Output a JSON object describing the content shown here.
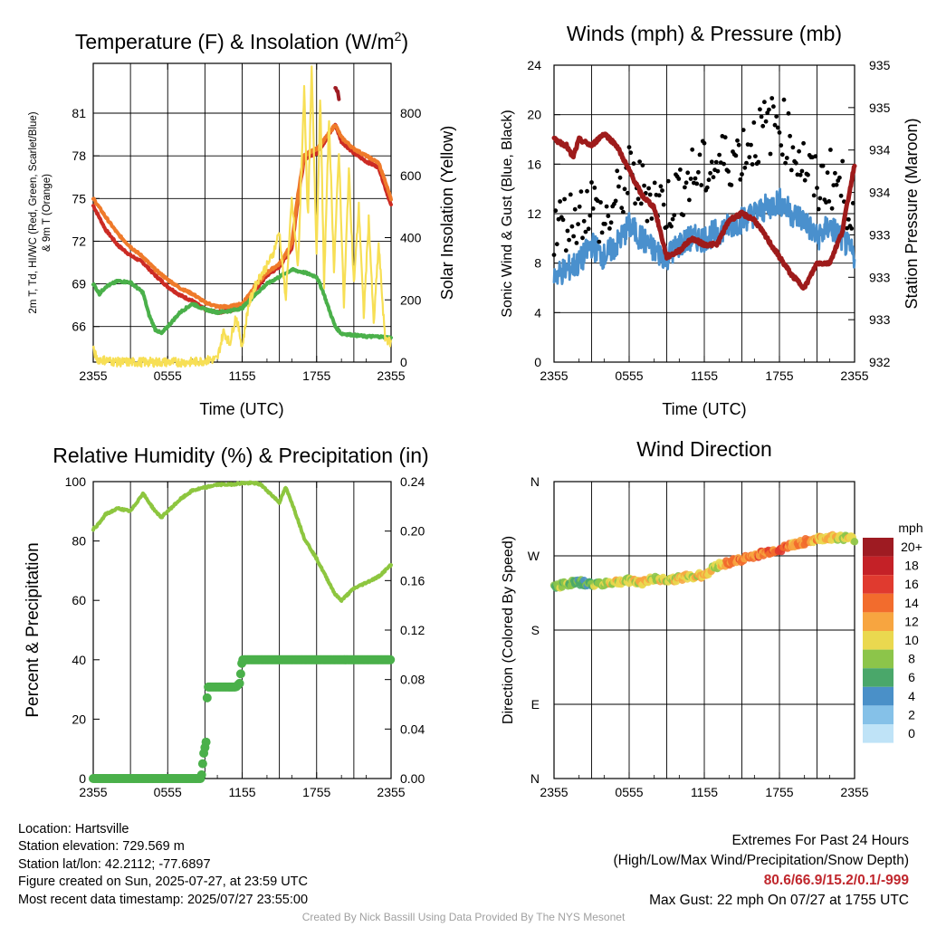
{
  "chart_data": [
    {
      "type": "line",
      "title": "Temperature (F) & Insolation (W/m²)",
      "title_main": "Temperature (F) & Insolation (W/m",
      "title_sup": "2",
      "title_end": ")",
      "xlabel": "Time (UTC)",
      "ylabel_line1": "2m T, Td, HI/WC (Red, Green, Scarlet/Blue)",
      "ylabel_line2": "& 9m T (Orange)",
      "y2label": "Solar Insolation (Yellow)",
      "x_ticks": [
        "2355",
        "0555",
        "1155",
        "1755",
        "2355"
      ],
      "y_ticks": [
        66,
        69,
        72,
        75,
        78,
        81
      ],
      "ylim": [
        63.5,
        84.5
      ],
      "y2_ticks": [
        0,
        200,
        400,
        600,
        800
      ],
      "y2lim": [
        0,
        960
      ],
      "grid": true,
      "series": [
        {
          "name": "2m T",
          "color": "#cc2b24",
          "x": [
            0,
            1,
            2,
            3,
            4,
            5,
            6,
            7,
            8,
            9,
            10,
            11,
            12,
            13,
            14,
            15,
            16,
            16.5,
            17,
            17.5,
            18,
            18.5,
            19,
            19.5,
            20,
            21,
            22,
            23,
            24
          ],
          "y": [
            74.5,
            72.8,
            71.7,
            71.0,
            70.5,
            69.6,
            68.8,
            68.2,
            67.8,
            67.2,
            67.0,
            67.1,
            67.4,
            68.5,
            69.6,
            70.2,
            71.5,
            75.0,
            77.8,
            78.0,
            78.2,
            78.8,
            79.5,
            80.2,
            79.0,
            78.2,
            77.6,
            77.2,
            74.5
          ]
        },
        {
          "name": "9m T",
          "color": "#ef7a2a",
          "x": [
            0,
            1,
            2,
            3,
            4,
            5,
            6,
            7,
            8,
            9,
            10,
            11,
            12,
            13,
            14,
            15,
            16,
            16.5,
            17,
            17.5,
            18,
            18.5,
            19,
            19.5,
            20,
            21,
            22,
            23,
            24
          ],
          "y": [
            75.0,
            73.7,
            72.5,
            71.6,
            70.9,
            70.0,
            69.3,
            68.7,
            68.3,
            67.7,
            67.4,
            67.4,
            67.6,
            68.8,
            69.8,
            70.4,
            71.8,
            75.3,
            78.0,
            78.3,
            78.5,
            79.0,
            79.6,
            80.2,
            79.3,
            78.5,
            78.0,
            77.5,
            75.0
          ]
        },
        {
          "name": "Td",
          "color": "#4ab04a",
          "x": [
            0,
            0.5,
            1,
            2,
            3,
            4,
            4.5,
            5,
            5.5,
            6,
            7,
            8,
            9,
            10,
            11,
            12,
            13,
            14,
            15,
            16,
            17,
            18,
            18.5,
            19,
            19.5,
            20,
            21,
            22,
            23,
            24
          ],
          "y": [
            69.0,
            68.3,
            68.8,
            69.2,
            69.1,
            68.4,
            66.8,
            65.8,
            65.5,
            66.0,
            67.0,
            67.6,
            67.2,
            67.0,
            67.1,
            67.3,
            68.2,
            69.0,
            69.5,
            70.0,
            69.8,
            69.5,
            68.5,
            67.2,
            66.0,
            65.5,
            65.4,
            65.3,
            65.3,
            65.2
          ]
        },
        {
          "name": "HI/WC",
          "color": "#9e1b22",
          "x": [
            19.5,
            19.7,
            19.8
          ],
          "y": [
            82.8,
            82.5,
            82.0
          ]
        },
        {
          "name": "Insolation",
          "color": "#f7df55",
          "axis": "y2",
          "x": [
            0,
            0.3,
            2,
            4,
            6,
            8,
            10,
            10.5,
            11,
            11.5,
            12,
            12.5,
            13,
            13.5,
            14,
            14.5,
            15,
            15.5,
            16,
            16.5,
            17,
            17.3,
            17.6,
            18,
            18.3,
            18.6,
            19,
            19.4,
            19.8,
            20.2,
            20.6,
            21,
            21.4,
            21.8,
            22.2,
            22.6,
            23,
            23.5,
            24
          ],
          "y": [
            40,
            10,
            0,
            0,
            0,
            0,
            10,
            100,
            60,
            150,
            50,
            180,
            240,
            280,
            310,
            350,
            420,
            200,
            520,
            300,
            880,
            450,
            940,
            350,
            860,
            250,
            780,
            300,
            680,
            180,
            620,
            250,
            500,
            150,
            460,
            120,
            380,
            80,
            60
          ]
        }
      ]
    },
    {
      "type": "line",
      "title": "Winds (mph) & Pressure (mb)",
      "xlabel": "Time (UTC)",
      "ylabel": "Sonic Wind & Gust (Blue, Black)",
      "y2label": "Station Pressure (Maroon)",
      "x_ticks": [
        "2355",
        "0555",
        "1155",
        "1755",
        "2355"
      ],
      "y_ticks": [
        0,
        4,
        8,
        12,
        16,
        20,
        24
      ],
      "ylim": [
        0,
        24
      ],
      "y2_ticks": [
        "932",
        "933",
        "933",
        "933",
        "934",
        "934",
        "935",
        "935"
      ],
      "grid": true,
      "series": [
        {
          "name": "Sonic Wind",
          "color": "#4a90cd",
          "x": [
            0,
            1,
            2,
            3,
            4,
            5,
            6,
            7,
            8,
            9,
            10,
            11,
            12,
            13,
            14,
            15,
            16,
            17,
            18,
            19,
            20,
            21,
            22,
            23,
            24
          ],
          "y": [
            7,
            7.5,
            8,
            9.5,
            8.5,
            9.5,
            11,
            10,
            9,
            8.5,
            9.5,
            10,
            10,
            10.5,
            11,
            11.5,
            12,
            12.5,
            13,
            12,
            11.5,
            10,
            11,
            10,
            8.5
          ]
        },
        {
          "name": "Gust",
          "color": "#000000",
          "x": [
            0,
            1,
            2,
            3,
            4,
            5,
            6,
            7,
            8,
            9,
            10,
            11,
            12,
            13,
            14,
            15,
            16,
            17,
            18,
            19,
            20,
            21,
            22,
            23,
            24
          ],
          "y": [
            11,
            11.5,
            12,
            13,
            11,
            13,
            15,
            14,
            13.5,
            12.5,
            14,
            15,
            15.5,
            16,
            16.5,
            17,
            18,
            19,
            19.5,
            17.5,
            16,
            14,
            15,
            14,
            12
          ]
        },
        {
          "name": "Station Pressure",
          "color": "#9e1b1b",
          "x": [
            0,
            1,
            1.5,
            2,
            3,
            4,
            5,
            6,
            7,
            8,
            9,
            10,
            11,
            12,
            13,
            14,
            15,
            16,
            17,
            18,
            19,
            20,
            21,
            22,
            23,
            24
          ],
          "y": [
            18,
            17.5,
            16.5,
            18,
            17.5,
            18.5,
            17.5,
            15.5,
            13.5,
            12.5,
            8.5,
            9,
            10,
            9.5,
            9.5,
            11.5,
            12,
            11.5,
            10,
            8.5,
            7,
            6,
            8,
            8,
            10.5,
            16
          ]
        }
      ]
    },
    {
      "type": "line",
      "title": "Relative Humidity (%) & Precipitation (in)",
      "ylabel": "Percent & Precipitation",
      "x_ticks": [
        "2355",
        "0555",
        "1155",
        "1755",
        "2355"
      ],
      "y_ticks": [
        0,
        20,
        40,
        60,
        80,
        100
      ],
      "ylim": [
        0,
        100
      ],
      "y2_ticks": [
        "0.00",
        "0.04",
        "0.08",
        "0.12",
        "0.16",
        "0.20",
        "0.24"
      ],
      "y2lim": [
        0,
        0.24
      ],
      "grid": true,
      "series": [
        {
          "name": "Relative Humidity",
          "color": "#8dc63f",
          "x": [
            0,
            0.5,
            1,
            2,
            3,
            3.5,
            4,
            5,
            5.5,
            6,
            7,
            8,
            9,
            10,
            11,
            12,
            13,
            13.5,
            14,
            15,
            15.5,
            16,
            17,
            18,
            19,
            19.5,
            20,
            21,
            22,
            23,
            24
          ],
          "y": [
            84,
            86,
            89,
            91,
            90,
            93,
            96,
            90,
            88,
            90,
            94,
            97,
            98,
            99,
            99,
            99.5,
            99.5,
            99,
            97,
            93,
            98,
            93,
            81,
            74,
            66,
            62,
            60,
            64,
            66,
            68,
            72
          ]
        },
        {
          "name": "Precipitation",
          "color": "#4ab04a",
          "axis": "y2",
          "x": [
            0,
            8.7,
            8.9,
            9.1,
            9.2,
            9.5,
            11.5,
            11.8,
            12,
            24
          ],
          "y": [
            0,
            0,
            0.02,
            0.03,
            0.074,
            0.074,
            0.074,
            0.077,
            0.096,
            0.096
          ]
        }
      ]
    },
    {
      "type": "scatter",
      "title": "Wind Direction",
      "ylabel": "Direction (Colored By Speed)",
      "x_ticks": [
        "2355",
        "0555",
        "1155",
        "1755",
        "2355"
      ],
      "y_ticks": [
        "N",
        "E",
        "S",
        "W",
        "N"
      ],
      "legend": {
        "title": "mph",
        "placement": "right",
        "labels": [
          "20+",
          "18",
          "16",
          "14",
          "12",
          "10",
          "8",
          "6",
          "4",
          "2",
          "0"
        ],
        "colors": [
          "#9e1b22",
          "#c42127",
          "#e03a2f",
          "#f26c2d",
          "#f7a540",
          "#ead84f",
          "#8cc54a",
          "#4aa76a",
          "#4a90c8",
          "#85c1e8",
          "#bfe3f7"
        ]
      },
      "series": [
        {
          "name": "Direction",
          "x": [
            0,
            1,
            2,
            3,
            4,
            5,
            6,
            7,
            8,
            9,
            10,
            11,
            12,
            13,
            14,
            15,
            16,
            17,
            18,
            19,
            20,
            21,
            22,
            23,
            24
          ],
          "y": [
            233,
            236,
            238,
            235,
            237,
            238,
            240,
            238,
            242,
            241,
            243,
            245,
            247,
            258,
            262,
            266,
            270,
            274,
            278,
            283,
            287,
            290,
            292,
            292,
            290
          ],
          "speed": [
            7,
            8,
            6,
            7,
            9,
            10,
            9,
            11,
            10,
            9,
            11,
            10,
            12,
            9,
            13,
            14,
            13,
            14,
            15,
            12,
            13,
            12,
            11,
            10,
            9
          ]
        }
      ]
    }
  ],
  "info": {
    "location": "Location: Hartsville",
    "elevation": "Station elevation: 729.569 m",
    "latlon": "Station lat/lon: 42.2112; -77.6897",
    "created": "Figure created on Sun, 2025-07-27, at 23:59 UTC",
    "recent": "Most recent data timestamp: 2025/07/27 23:55:00"
  },
  "extremes": {
    "heading": "Extremes For Past 24 Hours",
    "subheading": "(High/Low/Max Wind/Precipitation/Snow Depth)",
    "values": "80.6/66.9/15.2/0.1/-999",
    "gust": "Max Gust: 22 mph On 07/27 at 1755 UTC"
  },
  "credit": "Created By Nick Bassill Using Data Provided By The NYS Mesonet"
}
